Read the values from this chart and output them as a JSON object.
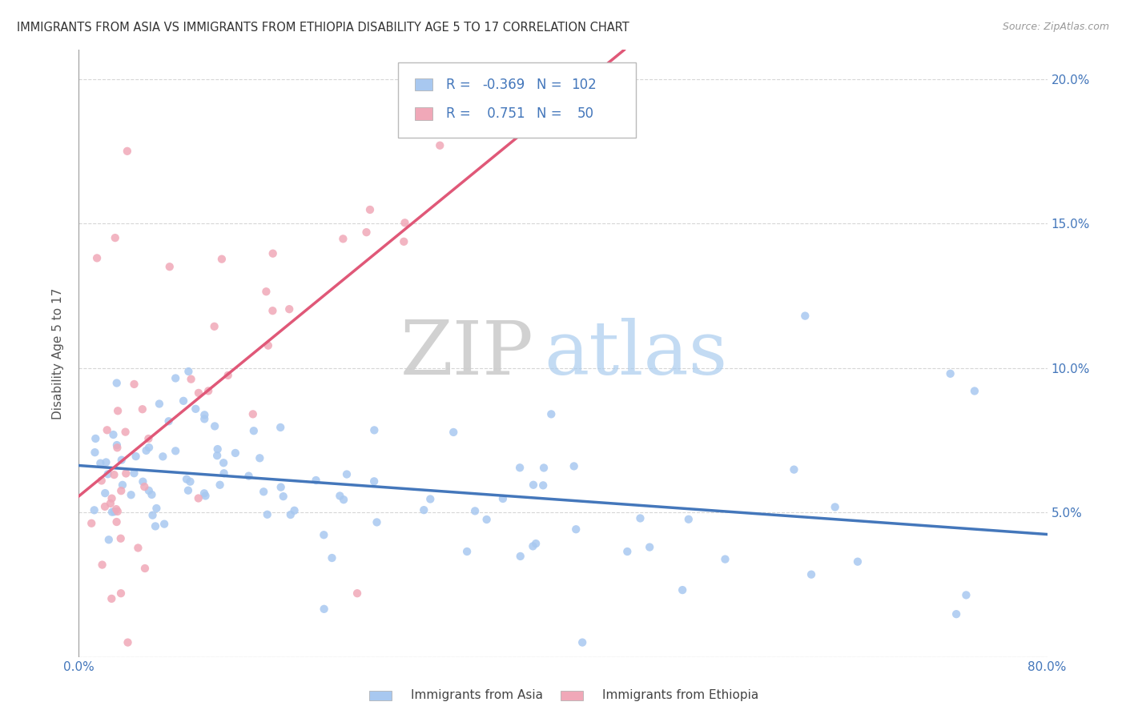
{
  "title": "IMMIGRANTS FROM ASIA VS IMMIGRANTS FROM ETHIOPIA DISABILITY AGE 5 TO 17 CORRELATION CHART",
  "source": "Source: ZipAtlas.com",
  "ylabel": "Disability Age 5 to 17",
  "xlim": [
    0.0,
    0.8
  ],
  "ylim": [
    0.0,
    0.21
  ],
  "legend_r_asia": "-0.369",
  "legend_n_asia": "102",
  "legend_r_ethiopia": "0.751",
  "legend_n_ethiopia": "50",
  "color_asia": "#a8c8f0",
  "color_ethiopia": "#f0a8b8",
  "trendline_color_asia": "#4477bb",
  "trendline_color_ethiopia": "#e05878",
  "watermark_zip": "ZIP",
  "watermark_atlas": "atlas",
  "watermark_color_zip": "#cccccc",
  "watermark_color_atlas": "#aaccee",
  "background_color": "#ffffff",
  "legend_text_color": "#4477bb",
  "axis_text_color": "#4477bb",
  "label_color": "#555555",
  "grid_color": "#cccccc"
}
